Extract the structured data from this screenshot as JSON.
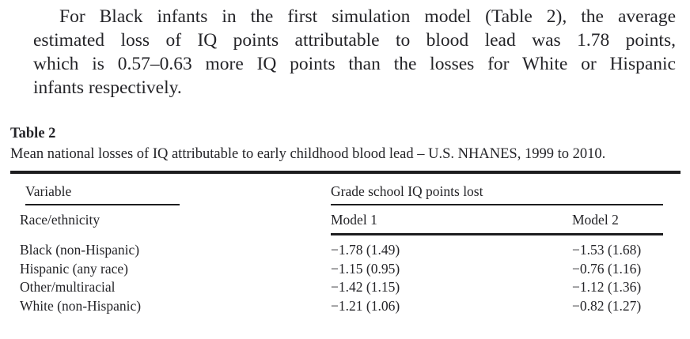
{
  "page": {
    "background": "#ffffff",
    "text_color": "#242428",
    "rule_color": "#1d1d1f"
  },
  "paragraph": {
    "lines": [
      "For Black infants in the first simulation model (Table 2), the average",
      "estimated loss of IQ points attributable to blood lead was 1.78 points,",
      "which is 0.57–0.63 more IQ points than the losses for White or Hispanic",
      "infants respectively."
    ]
  },
  "table": {
    "label": "Table 2",
    "caption": "Mean national losses of IQ attributable to early childhood blood lead – U.S. NHANES, 1999 to 2010.",
    "header": {
      "col1": "Variable",
      "spanner": "Grade school IQ points lost",
      "row_label": "Race/ethnicity",
      "model1": "Model 1",
      "model2": "Model 2"
    },
    "rows": [
      {
        "label": "Black (non-Hispanic)",
        "model1": "−1.78 (1.49)",
        "model2": "−1.53 (1.68)"
      },
      {
        "label": "Hispanic (any race)",
        "model1": "−1.15 (0.95)",
        "model2": "−0.76 (1.16)"
      },
      {
        "label": "Other/multiracial",
        "model1": "−1.42 (1.15)",
        "model2": "−1.12 (1.36)"
      },
      {
        "label": "White (non-Hispanic)",
        "model1": "−1.21 (1.06)",
        "model2": "−0.82 (1.27)"
      }
    ]
  }
}
